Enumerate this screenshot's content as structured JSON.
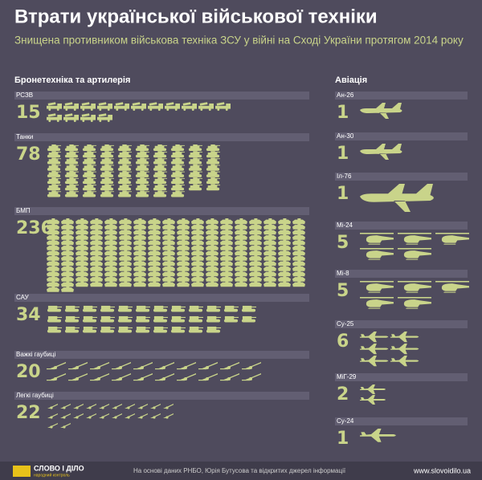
{
  "header": {
    "title": "Втрати української військової техніки",
    "subtitle": "Знищена противником військова техніка ЗСУ у війні на Сході України протягом 2014 року"
  },
  "armor": {
    "title": "Бронетехніка та артилерія",
    "items": [
      {
        "label": "РСЗВ",
        "count": 15
      },
      {
        "label": "Танки",
        "count": 78
      },
      {
        "label": "БМП",
        "count": 236
      },
      {
        "label": "САУ",
        "count": 34
      },
      {
        "label": "Важкі гаубиці",
        "count": 20
      },
      {
        "label": "Легкі гаубиці",
        "count": 22
      }
    ]
  },
  "aviation": {
    "title": "Авіація",
    "items": [
      {
        "label": "Ан-26",
        "count": 1
      },
      {
        "label": "Ан-30",
        "count": 1
      },
      {
        "label": "Іл-76",
        "count": 1
      },
      {
        "label": "Мі-24",
        "count": 5
      },
      {
        "label": "Мі-8",
        "count": 5
      },
      {
        "label": "Су-25",
        "count": 6
      },
      {
        "label": "МіГ-29",
        "count": 2
      },
      {
        "label": "Су-24",
        "count": 1
      }
    ]
  },
  "footer": {
    "logo": "СЛОВО І ДІЛО",
    "logo_sub": "народний контроль",
    "source": "На основі даних РНБО, Юрія Бутусова та відкритих джерел інформації",
    "url": "www.slovoidilo.ua"
  }
}
